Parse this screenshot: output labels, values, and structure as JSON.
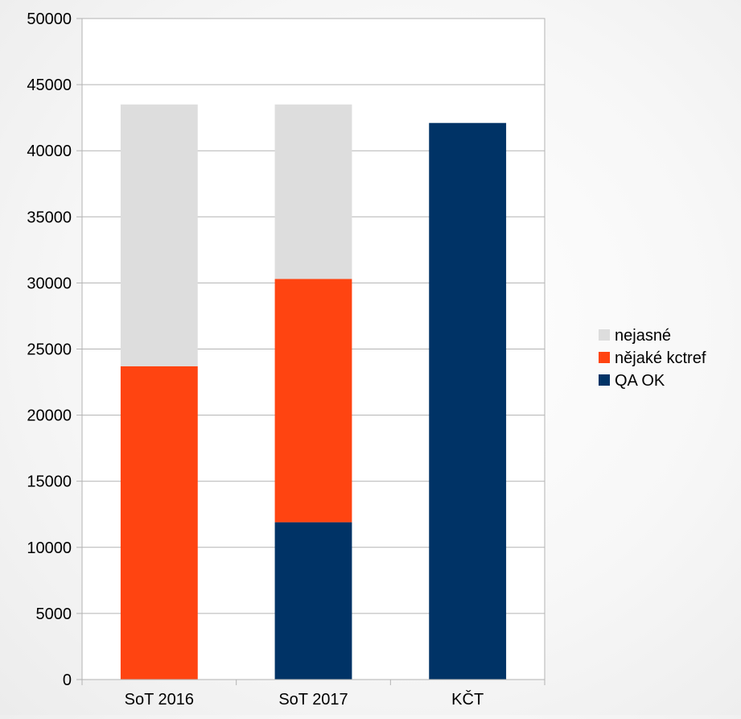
{
  "chart_data": {
    "type": "bar",
    "stacked": true,
    "categories": [
      "SoT 2016",
      "SoT 2017",
      "KČT"
    ],
    "series": [
      {
        "name": "QA OK",
        "color": "#003366",
        "values": [
          0,
          11900,
          42100
        ]
      },
      {
        "name": "nějaké kctref",
        "color": "#ff4411",
        "values": [
          23700,
          18400,
          0
        ]
      },
      {
        "name": "nejasné",
        "color": "#dddddd",
        "values": [
          19800,
          13200,
          0
        ]
      }
    ],
    "legend_order": [
      "nejasné",
      "nějaké kctref",
      "QA OK"
    ],
    "ylim": [
      0,
      50000
    ],
    "yticks": [
      "0",
      "5000",
      "10000",
      "15000",
      "20000",
      "25000",
      "30000",
      "35000",
      "40000",
      "45000",
      "50000"
    ],
    "grid": true,
    "legend_position": "right",
    "title": "",
    "xlabel": "",
    "ylabel": ""
  }
}
